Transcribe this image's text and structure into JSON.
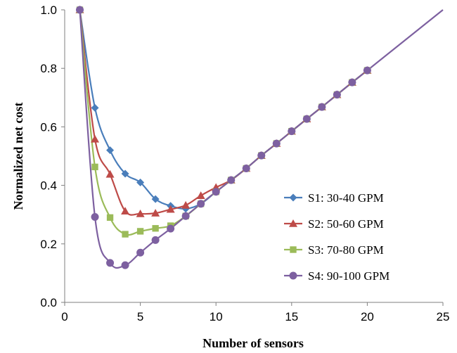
{
  "chart_data": {
    "type": "line",
    "xlabel": "Number of sensors",
    "ylabel": "Normalized net cost",
    "xlim": [
      0,
      25
    ],
    "ylim": [
      0.0,
      1.0
    ],
    "x_ticks": [
      0,
      5,
      10,
      15,
      20,
      25
    ],
    "y_ticks": [
      0.0,
      0.2,
      0.4,
      0.6,
      0.8,
      1.0
    ],
    "x_tick_labels": [
      "0",
      "5",
      "10",
      "15",
      "20",
      "25"
    ],
    "y_tick_labels": [
      "0.0",
      "0.2",
      "0.4",
      "0.6",
      "0.8",
      "1.0"
    ],
    "grid": false,
    "legend_position": "right",
    "series": [
      {
        "name": "S1: 30-40 GPM",
        "color": "#4a7ebb",
        "marker": "diamond",
        "x": [
          1,
          2,
          3,
          4,
          5,
          6,
          7,
          8,
          9,
          10,
          11,
          12,
          13,
          14,
          15,
          16,
          17,
          18,
          19,
          20
        ],
        "values": [
          1.0,
          0.665,
          0.52,
          0.44,
          0.41,
          0.353,
          0.33,
          0.32,
          0.337,
          0.378,
          0.418,
          0.458,
          0.502,
          0.543,
          0.585,
          0.627,
          0.668,
          0.71,
          0.752,
          0.793
        ]
      },
      {
        "name": "S2: 50-60 GPM",
        "color": "#be4b48",
        "marker": "triangle",
        "x": [
          1,
          2,
          3,
          4,
          5,
          6,
          7,
          8,
          9,
          10,
          11,
          12,
          13,
          14,
          15,
          16,
          17,
          18,
          19,
          20
        ],
        "values": [
          1.0,
          0.558,
          0.438,
          0.312,
          0.303,
          0.305,
          0.318,
          0.332,
          0.365,
          0.393,
          0.418,
          0.458,
          0.502,
          0.543,
          0.585,
          0.627,
          0.668,
          0.71,
          0.752,
          0.793
        ]
      },
      {
        "name": "S3: 70-80 GPM",
        "color": "#9bbb59",
        "marker": "square",
        "x": [
          1,
          2,
          3,
          4,
          5,
          6,
          7,
          8,
          9,
          10,
          11,
          12,
          13,
          14,
          15,
          16,
          17,
          18,
          19,
          20
        ],
        "values": [
          1.0,
          0.463,
          0.29,
          0.233,
          0.243,
          0.253,
          0.262,
          0.295,
          0.337,
          0.378,
          0.418,
          0.458,
          0.502,
          0.543,
          0.585,
          0.627,
          0.668,
          0.71,
          0.752,
          0.793
        ]
      },
      {
        "name": "S4: 90-100 GPM",
        "color": "#7d60a0",
        "marker": "circle",
        "x": [
          1,
          2,
          3,
          4,
          5,
          6,
          7,
          8,
          9,
          10,
          11,
          12,
          13,
          14,
          15,
          16,
          17,
          18,
          19,
          20
        ],
        "values": [
          1.0,
          0.292,
          0.135,
          0.127,
          0.17,
          0.213,
          0.252,
          0.295,
          0.337,
          0.378,
          0.418,
          0.458,
          0.502,
          0.543,
          0.585,
          0.627,
          0.668,
          0.71,
          0.752,
          0.793
        ]
      }
    ],
    "extension_line": {
      "color": "#7d60a0",
      "x": [
        20,
        25
      ],
      "values": [
        0.793,
        1.0
      ]
    }
  }
}
